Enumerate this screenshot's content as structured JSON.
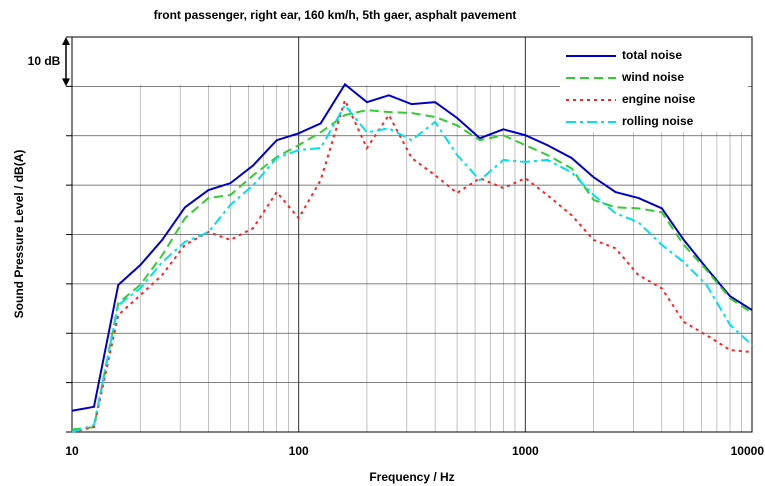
{
  "chart_data": {
    "type": "line",
    "title": "front passenger, right ear, 160 km/h, 5th gaer, asphalt pavement",
    "xlabel": "Frequency / Hz",
    "ylabel": "Sound Pressure Level / dB(A)",
    "annotation": "10 dB",
    "x": [
      10,
      12.5,
      16,
      20,
      25,
      31.5,
      40,
      50,
      63,
      80,
      100,
      125,
      160,
      200,
      250,
      315,
      400,
      500,
      630,
      800,
      1000,
      1250,
      1600,
      2000,
      2500,
      3150,
      4000,
      5000,
      6300,
      8000,
      10000
    ],
    "xlim": [
      10,
      10000
    ],
    "xticks": [
      10,
      100,
      1000,
      10000
    ],
    "xscale": "log",
    "ylim": [
      0,
      80
    ],
    "yticks": [
      0,
      10,
      20,
      30,
      40,
      50,
      60,
      70,
      80
    ],
    "grid": true,
    "minor_grid": true,
    "legend": "upper right",
    "series": [
      {
        "name": "total noise",
        "color": "#0000cc",
        "dash": "solid",
        "values": [
          4.3,
          5.1,
          29.8,
          33.8,
          38.9,
          45.5,
          49,
          50.4,
          54,
          59.1,
          60.5,
          62.5,
          70.4,
          66.8,
          68.2,
          66.4,
          66.8,
          63.6,
          59.5,
          61.3,
          60.1,
          58.1,
          55.5,
          51.6,
          48.6,
          47.4,
          45.3,
          38.9,
          33.2,
          27.5,
          24.7
        ]
      },
      {
        "name": "wind noise",
        "color": "#33cc33",
        "dash": "dashed",
        "values": [
          0.5,
          1,
          26.1,
          29.8,
          35.8,
          43.3,
          47.4,
          48,
          52,
          55.7,
          58.1,
          60.7,
          64.2,
          65.2,
          64.8,
          64.6,
          63.8,
          62.1,
          59.1,
          60.1,
          58.1,
          56.1,
          53.4,
          47,
          45.5,
          45.3,
          44.5,
          37.9,
          32.8,
          27.1,
          24.1
        ]
      },
      {
        "name": "engine noise",
        "color": "#ff2222",
        "dash": "dotted",
        "values": [
          0,
          1,
          23.7,
          27.7,
          31.8,
          37.9,
          40.5,
          38.9,
          41.3,
          48.6,
          43.3,
          51,
          67.2,
          57.5,
          64.2,
          55.5,
          52,
          48.4,
          51.4,
          49.4,
          51.4,
          48,
          43.9,
          38.9,
          37.2,
          31.8,
          29.1,
          22.3,
          19.6,
          16.6,
          16.2
        ]
      },
      {
        "name": "rolling noise",
        "color": "#00e0ee",
        "dash": "dashdot",
        "values": [
          0,
          1.4,
          25.7,
          29.1,
          34.4,
          38.5,
          40.5,
          46,
          50,
          55.5,
          57.1,
          57.5,
          66.2,
          60.7,
          61.5,
          59.1,
          62.8,
          56.1,
          51,
          55.1,
          54.7,
          55.1,
          52.6,
          48,
          44.3,
          42.5,
          37.9,
          34.4,
          29.8,
          21.7,
          17.6
        ]
      }
    ]
  }
}
